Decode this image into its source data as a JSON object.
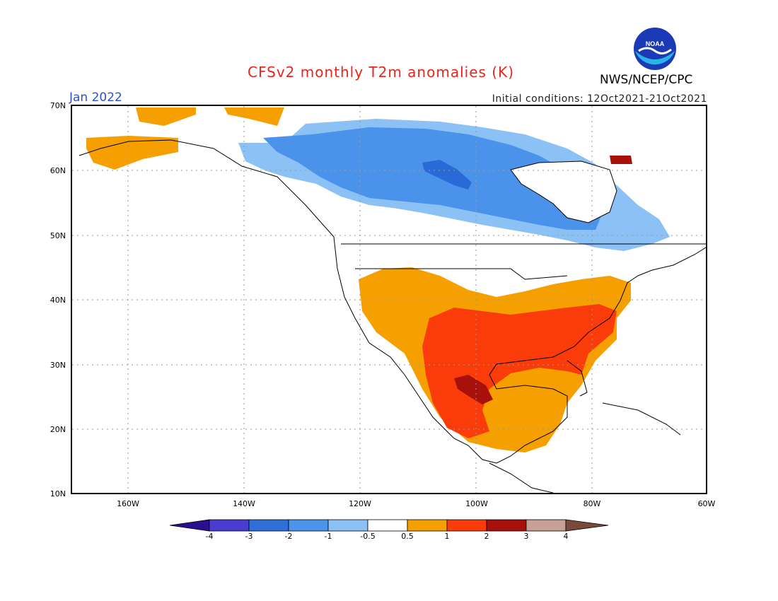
{
  "header": {
    "title": "CFSv2 monthly T2m anomalies (K)",
    "month": "Jan 2022",
    "initial_conditions": "Initial conditions: 12Oct2021-21Oct2021",
    "agency": "NWS/NCEP/CPC",
    "logo_text": "NOAA"
  },
  "map": {
    "lat_labels": [
      "70N",
      "60N",
      "50N",
      "40N",
      "30N",
      "20N",
      "10N"
    ],
    "lon_labels": [
      "160W",
      "140W",
      "120W",
      "100W",
      "80W",
      "60W"
    ]
  },
  "colorbar": {
    "labels": [
      "-4",
      "-3",
      "-2",
      "-1",
      "-0.5",
      "0.5",
      "1",
      "2",
      "3",
      "4"
    ],
    "colors": [
      "#2a0f8f",
      "#4a3cd0",
      "#2e6fd8",
      "#4a95eb",
      "#8cc1f5",
      "#ffffff",
      "#f5a000",
      "#fa3c0a",
      "#a8100c",
      "#c9a096",
      "#7a4a3c"
    ]
  },
  "colors": {
    "strong_cold": "#2a6ad6",
    "cold": "#4a92ea",
    "weak_cold": "#8cc1f5",
    "weak_warm": "#f5a000",
    "warm": "#fa3c0a",
    "strong_warm": "#a8100c"
  }
}
